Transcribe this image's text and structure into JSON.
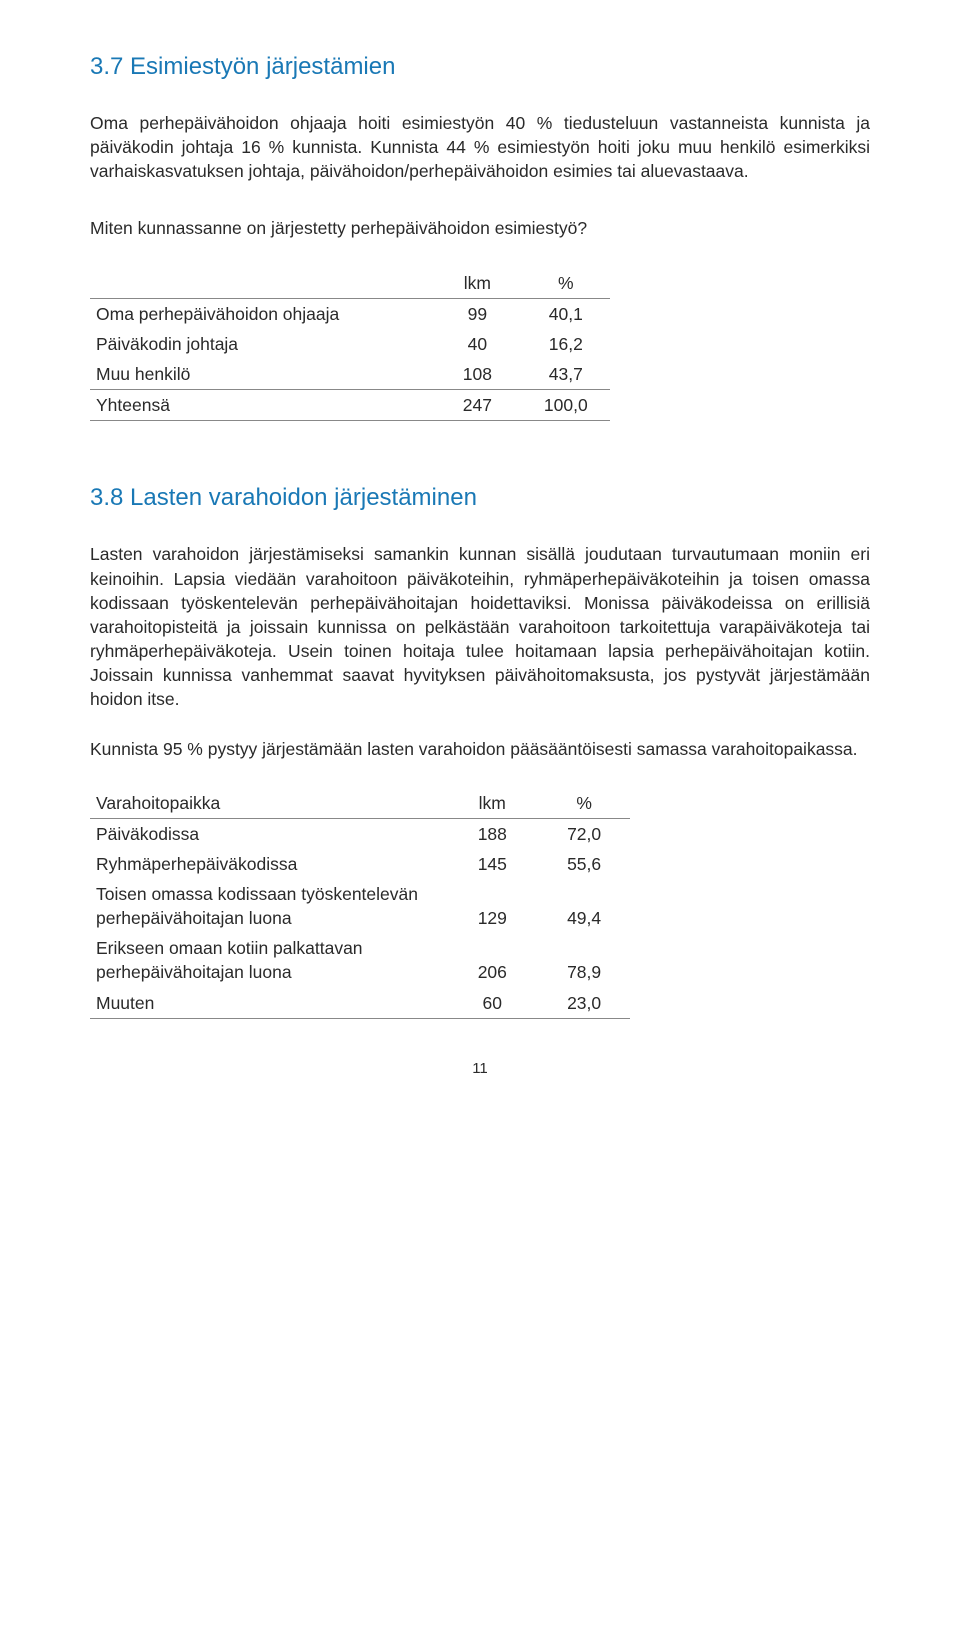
{
  "section37": {
    "heading": "3.7  Esimiestyön järjestämien",
    "para1": "Oma perhepäivähoidon ohjaaja hoiti esimiestyön 40 % tiedusteluun vastanneista kunnista ja päiväkodin johtaja 16 % kunnista. ",
    "para2": "Kunnista 44 % esimiestyön hoiti joku muu henkilö esimerkiksi varhaiskasvatuksen johtaja, päivähoidon/perhepäivähoidon esimies tai aluevastaava.",
    "question": "Miten kunnassanne on järjestetty perhepäivähoidon esimiestyö?",
    "table": {
      "hdr_c2": "lkm",
      "hdr_c3": "%",
      "rows": [
        {
          "label": "Oma perhepäivähoidon ohjaaja",
          "lkm": "99",
          "pct": "40,1"
        },
        {
          "label": "Päiväkodin johtaja",
          "lkm": "40",
          "pct": "16,2"
        },
        {
          "label": "Muu henkilö",
          "lkm": "108",
          "pct": "43,7"
        }
      ],
      "total": {
        "label": "Yhteensä",
        "lkm": "247",
        "pct": "100,0"
      }
    }
  },
  "section38": {
    "heading": "3.8  Lasten varahoidon järjestäminen",
    "para1": "Lasten varahoidon järjestämiseksi samankin kunnan sisällä joudutaan turvautumaan moniin eri keinoihin. Lapsia viedään varahoitoon päiväkoteihin, ryhmäperhepäiväkoteihin ja toisen omassa kodissaan työskentelevän perhepäivähoitajan hoidettaviksi. Monissa päiväkodeissa on erillisiä varahoitopisteitä ja joissain kunnissa on pelkästään varahoitoon tarkoitettuja varapäiväkoteja tai ryhmäperhepäiväkoteja. Usein toinen hoitaja tulee hoitamaan lapsia perhepäivähoitajan kotiin. Joissain kunnissa vanhemmat saavat hyvityksen päivähoitomaksusta, jos pystyvät järjestämään hoidon itse.",
    "para2": "Kunnista 95 % pystyy järjestämään lasten varahoidon pääsääntöisesti samassa varahoitopaikassa.",
    "table": {
      "hdr_c1": "Varahoitopaikka",
      "hdr_c2": "lkm",
      "hdr_c3": "%",
      "rows": [
        {
          "label": "Päiväkodissa",
          "lkm": "188",
          "pct": "72,0"
        },
        {
          "label": "Ryhmäperhepäiväkodissa",
          "lkm": "145",
          "pct": "55,6"
        },
        {
          "label": "Toisen omassa kodissaan työskentelevän perhepäivähoitajan luona",
          "lkm": "129",
          "pct": "49,4"
        },
        {
          "label": "Erikseen omaan kotiin palkattavan perhepäivähoitajan luona",
          "lkm": "206",
          "pct": "78,9"
        },
        {
          "label": "Muuten",
          "lkm": "60",
          "pct": "23,0"
        }
      ]
    }
  },
  "page_number": "11"
}
